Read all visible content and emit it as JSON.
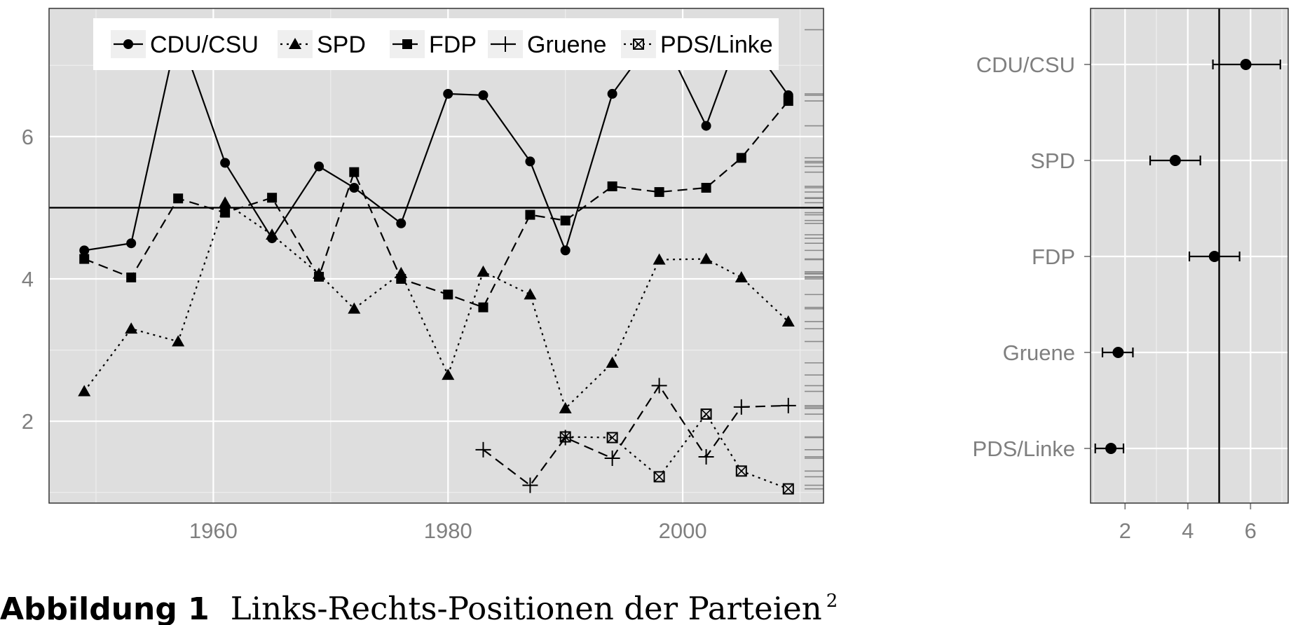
{
  "chart_data": [
    {
      "type": "line",
      "xlim": [
        1946,
        2012
      ],
      "ylim": [
        0.85,
        7.8
      ],
      "x_ticks": [
        1960,
        1980,
        2000
      ],
      "y_ticks": [
        2,
        4,
        6
      ],
      "reference_line": 5,
      "grid": true,
      "legend_position": "top",
      "series": [
        {
          "name": "CDU/CSU",
          "marker": "circle",
          "line": "solid",
          "x": [
            1949,
            1953,
            1957,
            1961,
            1965,
            1969,
            1972,
            1976,
            1980,
            1983,
            1987,
            1990,
            1994,
            1998,
            2002,
            2005,
            2009
          ],
          "y": [
            4.4,
            4.5,
            7.5,
            5.63,
            4.57,
            5.58,
            5.28,
            4.78,
            6.6,
            6.58,
            5.65,
            4.4,
            6.6,
            7.5,
            6.15,
            7.5,
            6.58
          ]
        },
        {
          "name": "SPD",
          "marker": "triangle",
          "line": "dotted",
          "x": [
            1949,
            1953,
            1957,
            1961,
            1965,
            1969,
            1972,
            1976,
            1980,
            1983,
            1987,
            1990,
            1994,
            1998,
            2002,
            2005,
            2009
          ],
          "y": [
            2.42,
            3.3,
            3.12,
            5.07,
            4.62,
            4.07,
            3.58,
            4.08,
            2.65,
            4.1,
            3.78,
            2.18,
            2.82,
            4.27,
            4.28,
            4.02,
            3.4
          ]
        },
        {
          "name": "FDP",
          "marker": "square",
          "line": "dashed",
          "x": [
            1949,
            1953,
            1957,
            1961,
            1965,
            1969,
            1972,
            1976,
            1980,
            1983,
            1987,
            1990,
            1994,
            1998,
            2002,
            2005,
            2009
          ],
          "y": [
            4.28,
            4.02,
            5.13,
            4.93,
            5.14,
            4.03,
            5.5,
            4.0,
            3.78,
            3.6,
            4.9,
            4.82,
            5.3,
            5.22,
            5.28,
            5.7,
            6.5
          ]
        },
        {
          "name": "Gruene",
          "marker": "plus",
          "line": "dashed",
          "x": [
            1983,
            1987,
            1990,
            1994,
            1998,
            2002,
            2005,
            2009
          ],
          "y": [
            1.6,
            1.1,
            1.77,
            1.48,
            2.5,
            1.5,
            2.2,
            2.22
          ]
        },
        {
          "name": "PDS/Linke",
          "marker": "boxed-x",
          "line": "dotted",
          "x": [
            1990,
            1994,
            1998,
            2002,
            2005,
            2009
          ],
          "y": [
            1.78,
            1.77,
            1.22,
            2.1,
            1.3,
            1.05
          ]
        }
      ],
      "rug_values": [
        1.05,
        1.1,
        1.22,
        1.3,
        1.48,
        1.5,
        1.6,
        1.77,
        1.78,
        2.1,
        2.18,
        2.2,
        2.22,
        2.42,
        2.5,
        2.65,
        2.82,
        3.12,
        3.3,
        3.4,
        3.58,
        3.6,
        3.78,
        4.0,
        4.02,
        4.03,
        4.07,
        4.08,
        4.1,
        4.27,
        4.28,
        4.4,
        4.5,
        4.57,
        4.62,
        4.78,
        4.82,
        4.9,
        4.93,
        5.07,
        5.13,
        5.14,
        5.22,
        5.28,
        5.3,
        5.5,
        5.58,
        5.63,
        5.65,
        5.7,
        6.15,
        6.5,
        6.58,
        6.6,
        7.5
      ]
    },
    {
      "type": "scatter",
      "orientation": "horizontal",
      "categories": [
        "CDU/CSU",
        "SPD",
        "FDP",
        "Gruene",
        "PDS/Linke"
      ],
      "values": [
        5.85,
        3.6,
        4.85,
        1.78,
        1.55
      ],
      "error_low": [
        4.8,
        2.8,
        4.05,
        1.28,
        1.05
      ],
      "error_high": [
        6.95,
        4.4,
        5.65,
        2.25,
        1.95
      ],
      "xlim": [
        0.9,
        7.2
      ],
      "x_ticks": [
        2,
        4,
        6
      ],
      "reference_line": 5,
      "grid": true
    }
  ],
  "legend": {
    "items": [
      "CDU/CSU",
      "SPD",
      "FDP",
      "Gruene",
      "PDS/Linke"
    ]
  },
  "caption": {
    "label": "Abbildung 1",
    "text": "Links-Rechts-Positionen der Parteien",
    "footnote": "2"
  },
  "colors": {
    "panel_background": "#dedede",
    "grid": "#ffffff",
    "axis_text": "#7f7f7f",
    "marks": "#000000"
  }
}
